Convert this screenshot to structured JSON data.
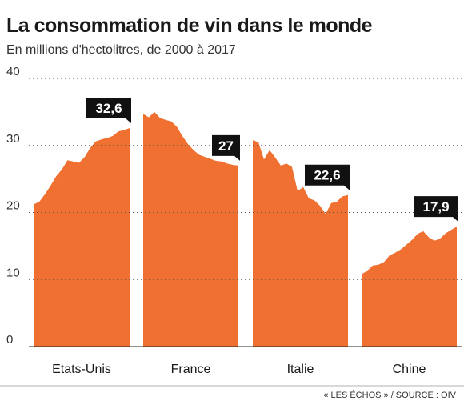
{
  "title": "La consommation de vin dans le monde",
  "subtitle": "En millions d'hectolitres, de 2000 à 2017",
  "source": "« LES ÉCHOS » / SOURCE : OIV",
  "colors": {
    "area": "#ef7030",
    "label_bg": "#111111",
    "label_text": "#ffffff",
    "grid": "#555555"
  },
  "chart_data": {
    "type": "area",
    "ylim": [
      0,
      40
    ],
    "yticks": [
      0,
      10,
      20,
      30,
      40
    ],
    "grid": "dotted-horizontal",
    "x": [
      2000,
      2001,
      2002,
      2003,
      2004,
      2005,
      2006,
      2007,
      2008,
      2009,
      2010,
      2011,
      2012,
      2013,
      2014,
      2015,
      2016,
      2017
    ],
    "series": [
      {
        "name": "Etats-Unis",
        "values": [
          21.2,
          21.6,
          22.7,
          24.0,
          25.4,
          26.4,
          27.8,
          27.6,
          27.4,
          28.2,
          29.6,
          30.6,
          30.9,
          31.1,
          31.4,
          32.1,
          32.3,
          32.6
        ],
        "end_label": "32,6"
      },
      {
        "name": "France",
        "values": [
          34.7,
          34.2,
          35.0,
          34.1,
          33.8,
          33.6,
          32.8,
          31.4,
          30.2,
          29.3,
          28.6,
          28.3,
          28.0,
          27.7,
          27.6,
          27.3,
          27.1,
          27.0
        ],
        "end_label": "27"
      },
      {
        "name": "Italie",
        "values": [
          30.8,
          30.5,
          27.9,
          29.3,
          28.2,
          27.0,
          27.3,
          26.8,
          23.2,
          23.8,
          22.1,
          21.8,
          21.0,
          19.8,
          21.4,
          21.6,
          22.4,
          22.6
        ],
        "end_label": "22,6"
      },
      {
        "name": "Chine",
        "values": [
          10.8,
          11.3,
          12.1,
          12.2,
          12.6,
          13.6,
          14.0,
          14.5,
          15.2,
          15.9,
          16.8,
          17.2,
          16.3,
          15.8,
          16.1,
          16.9,
          17.4,
          17.9
        ],
        "end_label": "17,9"
      }
    ]
  }
}
